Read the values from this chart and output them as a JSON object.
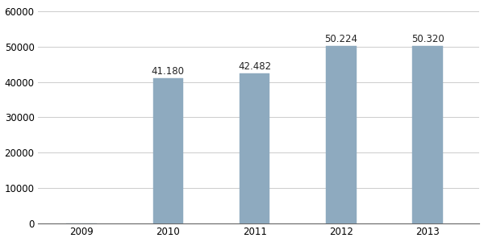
{
  "categories": [
    2009,
    2010,
    2011,
    2012,
    2013
  ],
  "values": [
    0,
    41180,
    42482,
    50224,
    50320
  ],
  "bar_color": "#8eaabf",
  "bar_labels": [
    "",
    "41.180",
    "42.482",
    "50.224",
    "50.320"
  ],
  "ylim": [
    0,
    62000
  ],
  "yticks": [
    0,
    10000,
    20000,
    30000,
    40000,
    50000,
    60000
  ],
  "xlim": [
    2008.5,
    2013.6
  ],
  "background_color": "#ffffff",
  "grid_color": "#cccccc",
  "label_fontsize": 8.5,
  "tick_fontsize": 8.5,
  "bar_width": 0.35
}
